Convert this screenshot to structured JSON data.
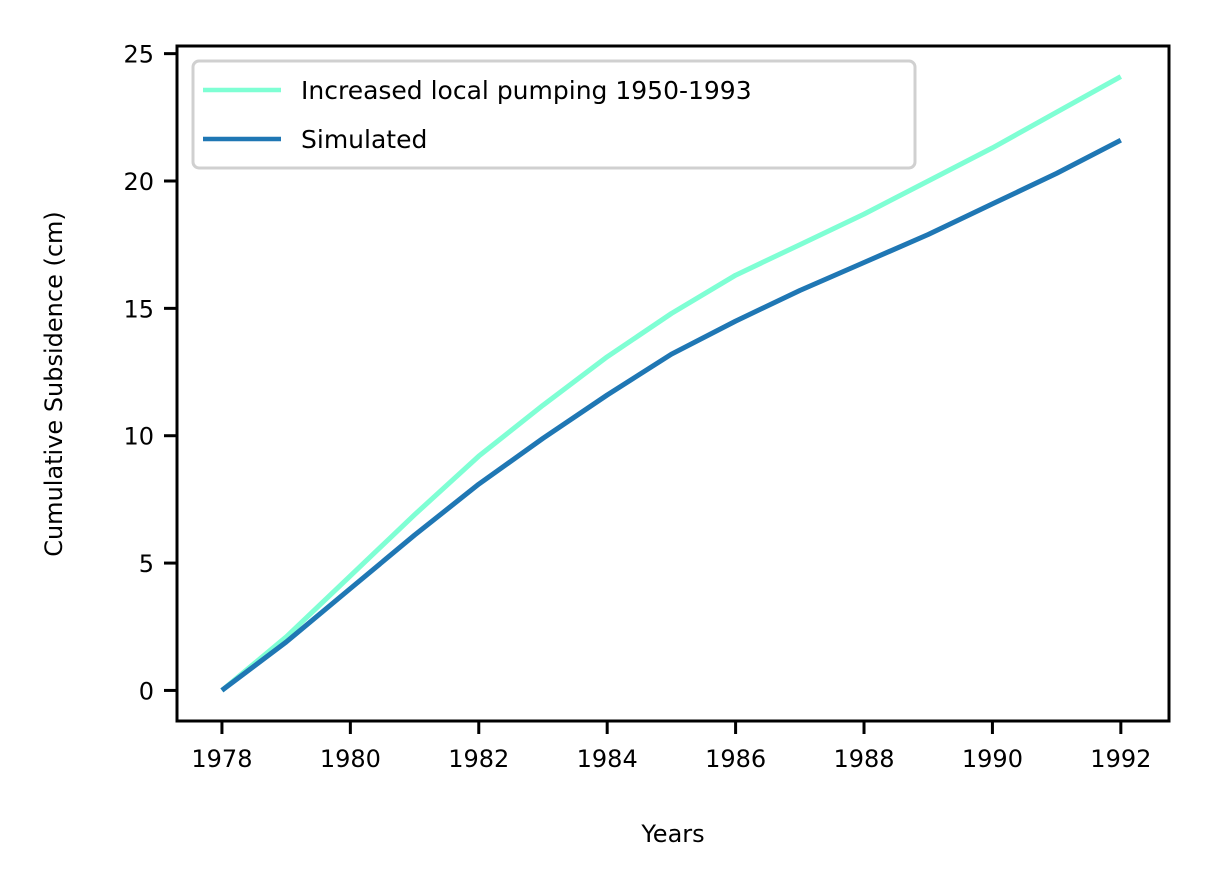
{
  "chart_data": {
    "type": "line",
    "xlabel": "Years",
    "ylabel": "Cumulative Subsidence (cm)",
    "xlim": [
      1977.3,
      1992.75
    ],
    "ylim": [
      -1.2,
      25.3
    ],
    "xticks": [
      1978,
      1980,
      1982,
      1984,
      1986,
      1988,
      1990,
      1992
    ],
    "yticks": [
      0,
      5,
      10,
      15,
      20,
      25
    ],
    "grid": false,
    "legend_position": "top-left",
    "series": [
      {
        "name": "Increased local pumping 1950-1993",
        "color": "#7fffd4",
        "x": [
          1978,
          1979,
          1980,
          1981,
          1982,
          1983,
          1984,
          1985,
          1986,
          1987,
          1988,
          1989,
          1990,
          1991,
          1992
        ],
        "y": [
          0,
          2.1,
          4.5,
          6.9,
          9.2,
          11.2,
          13.1,
          14.8,
          16.3,
          17.5,
          18.7,
          20.0,
          21.3,
          22.7,
          24.1
        ]
      },
      {
        "name": "Simulated",
        "color": "#1f77b4",
        "x": [
          1978,
          1979,
          1980,
          1981,
          1982,
          1983,
          1984,
          1985,
          1986,
          1987,
          1988,
          1989,
          1990,
          1991,
          1992
        ],
        "y": [
          0,
          1.9,
          4.0,
          6.1,
          8.1,
          9.9,
          11.6,
          13.2,
          14.5,
          15.7,
          16.8,
          17.9,
          19.1,
          20.3,
          21.6
        ]
      }
    ]
  }
}
